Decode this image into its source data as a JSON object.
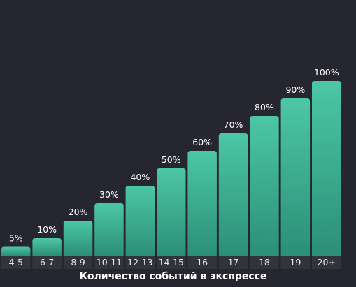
{
  "colors": {
    "background": "#262630",
    "bar_top": "#4cc7a5",
    "bar_bottom": "#2c8f77",
    "tick_band": "#33333c",
    "text": "#ffffff"
  },
  "chart_data": {
    "type": "bar",
    "categories": [
      "4-5",
      "6-7",
      "8-9",
      "10-11",
      "12-13",
      "14-15",
      "16",
      "17",
      "18",
      "19",
      "20+"
    ],
    "values": [
      5,
      10,
      20,
      30,
      40,
      50,
      60,
      70,
      80,
      90,
      100
    ],
    "value_labels": [
      "5%",
      "10%",
      "20%",
      "30%",
      "40%",
      "50%",
      "60%",
      "70%",
      "80%",
      "90%",
      "100%"
    ],
    "xlabel": "Количество событий в экспрессе",
    "ylabel": "",
    "ylim": [
      0,
      100
    ],
    "grid": false,
    "legend": "none"
  }
}
